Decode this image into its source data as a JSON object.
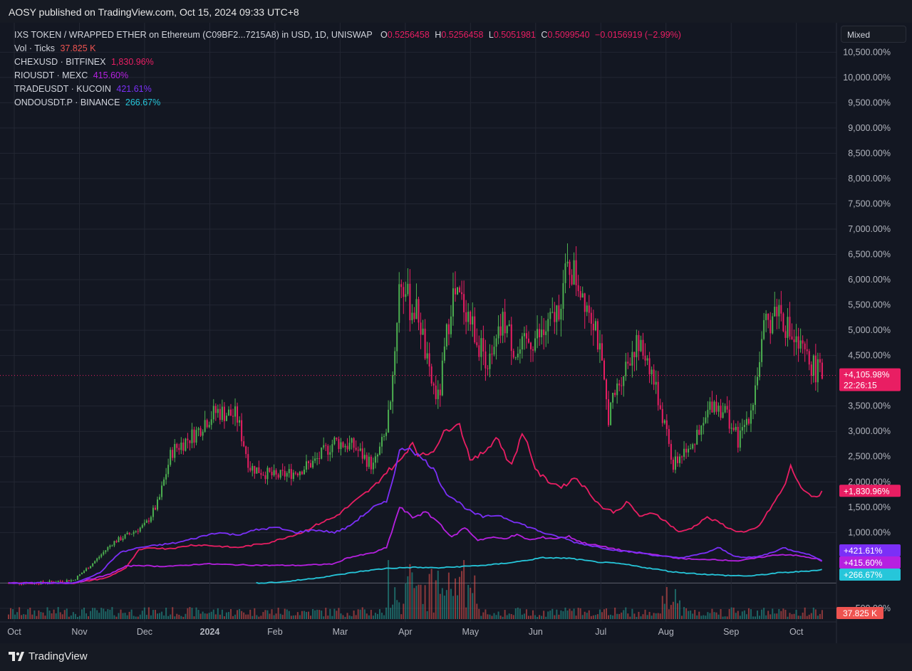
{
  "header": {
    "published": "AOSY published on TradingView.com, Oct 15, 2024 09:33 UTC+8"
  },
  "footer": {
    "brand": "TradingView"
  },
  "scale_mode": "Mixed",
  "main_symbol": {
    "title": "IXS TOKEN / WRAPPED ETHER on Ethereum (C09BF2...7215A8) in USD, 1D, UNISWAP",
    "o_label": "O",
    "o": "0.5256458",
    "h_label": "H",
    "h": "0.5256458",
    "l_label": "L",
    "l": "0.5051981",
    "c_label": "C",
    "c": "0.5099540",
    "change": "−0.0156919 (−2.99%)"
  },
  "volume": {
    "label": "Vol · Ticks",
    "value": "37.825 K"
  },
  "compare": [
    {
      "name": "CHEXUSD · BITFINEX",
      "value": "1,830.96%",
      "color": "#e91e63"
    },
    {
      "name": "RIOUSDT · MEXC",
      "value": "415.60%",
      "color": "#b620e0"
    },
    {
      "name": "TRADEUSDT · KUCOIN",
      "value": "421.61%",
      "color": "#7b2ff7"
    },
    {
      "name": "ONDOUSDT.P · BINANCE",
      "value": "266.67%",
      "color": "#26c6da"
    }
  ],
  "price_badges": {
    "main": "+4,105.98%",
    "countdown": "22:26:15",
    "chex": "+1,830.96%",
    "trade": "+421.61%",
    "rio": "+415.60%",
    "ondo": "+266.67%",
    "vol": "37.825 K"
  },
  "colors": {
    "up": "#4caf50",
    "down": "#e91e63",
    "chex": "#e91e63",
    "rio": "#b620e0",
    "trade": "#7b2ff7",
    "ondo": "#26c6da"
  },
  "chart_data": {
    "type": "line",
    "y_unit": "%",
    "y_ticks": [
      "10,500.00%",
      "10,000.00%",
      "9,500.00%",
      "9,000.00%",
      "8,500.00%",
      "8,000.00%",
      "7,500.00%",
      "7,000.00%",
      "6,500.00%",
      "6,000.00%",
      "5,500.00%",
      "5,000.00%",
      "4,500.00%",
      "3,500.00%",
      "3,000.00%",
      "2,500.00%",
      "2,000.00%",
      "1,500.00%",
      "1,000.00%",
      "-500.00%"
    ],
    "y_tick_values": [
      10500,
      10000,
      9500,
      9000,
      8500,
      8000,
      7500,
      7000,
      6500,
      6000,
      5500,
      5000,
      4500,
      3500,
      3000,
      2500,
      2000,
      1500,
      1000,
      -500
    ],
    "x_ticks": [
      "Oct",
      "Nov",
      "Dec",
      "2024",
      "Feb",
      "Mar",
      "Apr",
      "May",
      "Jun",
      "Jul",
      "Aug",
      "Sep",
      "Oct"
    ],
    "x_tick_months": [
      0,
      1,
      2,
      3,
      4,
      5,
      6,
      7,
      8,
      9,
      10,
      11,
      12
    ],
    "ylim": [
      -600,
      10800
    ],
    "xlim": [
      0,
      12.55
    ],
    "series": [
      {
        "name": "IXS TOKEN / WRAPPED ETHER",
        "key": "main",
        "x": [
          0,
          0.5,
          1,
          1.3,
          1.6,
          1.9,
          2.1,
          2.3,
          2.5,
          2.7,
          2.9,
          3.0,
          3.2,
          3.5,
          3.7,
          3.9,
          4.1,
          4.4,
          4.7,
          5.0,
          5.3,
          5.6,
          5.8,
          5.9,
          6.0,
          6.05,
          6.15,
          6.3,
          6.45,
          6.6,
          6.8,
          7.0,
          7.2,
          7.4,
          7.6,
          7.8,
          8.0,
          8.2,
          8.4,
          8.6,
          8.8,
          9.0,
          9.2,
          9.4,
          9.6,
          9.8,
          10.0,
          10.2,
          10.4,
          10.6,
          10.8,
          11.0,
          11.2,
          11.4,
          11.6,
          11.8,
          12.0,
          12.2,
          12.4,
          12.5
        ],
        "values": [
          0,
          5,
          60,
          400,
          800,
          1000,
          1150,
          1600,
          2600,
          2800,
          3000,
          3200,
          3400,
          3300,
          2300,
          2200,
          2100,
          2200,
          2400,
          2800,
          2700,
          2300,
          3000,
          4200,
          6000,
          5900,
          5500,
          5300,
          4100,
          3600,
          5700,
          5500,
          4800,
          4300,
          5200,
          4500,
          4800,
          4900,
          5300,
          6300,
          5800,
          5200,
          3300,
          4100,
          4700,
          4500,
          3500,
          2300,
          2700,
          2900,
          3600,
          3400,
          2800,
          3500,
          5000,
          5500,
          4900,
          4500,
          4200,
          4106
        ]
      },
      {
        "name": "CHEXUSD · BITFINEX",
        "key": "chex",
        "x": [
          0,
          1.0,
          1.5,
          1.8,
          2.0,
          2.2,
          2.4,
          2.6,
          2.8,
          3.0,
          3.5,
          4.0,
          4.5,
          4.8,
          5.0,
          5.2,
          5.4,
          5.6,
          5.8,
          6.0,
          6.2,
          6.3,
          6.5,
          6.7,
          6.9,
          7.1,
          7.3,
          7.5,
          7.7,
          7.9,
          8.1,
          8.3,
          8.5,
          8.7,
          8.9,
          9.1,
          9.3,
          9.5,
          9.7,
          9.9,
          10.1,
          10.3,
          10.5,
          10.7,
          10.9,
          11.1,
          11.3,
          11.5,
          11.7,
          11.9,
          12.0,
          12.2,
          12.4,
          12.5
        ],
        "values": [
          0,
          0,
          100,
          300,
          650,
          700,
          680,
          700,
          750,
          750,
          700,
          800,
          1000,
          1200,
          1300,
          1500,
          1700,
          1900,
          2200,
          2400,
          2800,
          2500,
          2600,
          3000,
          3200,
          2400,
          2600,
          2900,
          2300,
          3000,
          2200,
          2000,
          1900,
          2100,
          1800,
          1500,
          1400,
          1600,
          1300,
          1400,
          1200,
          1000,
          1100,
          1300,
          1200,
          1050,
          1000,
          1100,
          1500,
          1900,
          2300,
          1800,
          1700,
          1831
        ]
      },
      {
        "name": "RIOUSDT · MEXC",
        "key": "rio",
        "x": [
          0,
          1.0,
          1.5,
          1.8,
          2.0,
          2.3,
          2.6,
          3.0,
          3.5,
          4.0,
          4.5,
          5.0,
          5.2,
          5.4,
          5.6,
          5.8,
          6.0,
          6.2,
          6.4,
          6.6,
          6.8,
          7.0,
          7.2,
          7.4,
          7.6,
          7.8,
          8.0,
          8.2,
          8.4,
          8.6,
          8.8,
          9.0,
          9.2,
          9.4,
          9.6,
          9.8,
          10.0,
          10.2,
          10.4,
          10.6,
          10.8,
          11.0,
          11.2,
          11.4,
          11.6,
          11.8,
          12.0,
          12.2,
          12.4,
          12.5
        ],
        "values": [
          0,
          0,
          150,
          330,
          350,
          330,
          340,
          380,
          360,
          350,
          350,
          380,
          500,
          550,
          600,
          700,
          1500,
          1300,
          1400,
          1200,
          900,
          1100,
          850,
          900,
          880,
          950,
          850,
          900,
          880,
          920,
          800,
          750,
          700,
          650,
          600,
          580,
          550,
          500,
          480,
          460,
          470,
          450,
          440,
          480,
          520,
          560,
          560,
          520,
          480,
          416
        ]
      },
      {
        "name": "TRADEUSDT · KUCOIN",
        "key": "trade",
        "x": [
          0,
          1.0,
          1.4,
          1.7,
          2.0,
          2.3,
          2.6,
          2.9,
          3.2,
          3.5,
          3.8,
          4.1,
          4.4,
          4.7,
          5.0,
          5.2,
          5.4,
          5.6,
          5.8,
          6.0,
          6.15,
          6.3,
          6.5,
          6.7,
          6.9,
          7.1,
          7.3,
          7.5,
          7.7,
          7.9,
          8.1,
          8.3,
          8.5,
          8.7,
          8.9,
          9.1,
          9.3,
          9.5,
          9.7,
          9.9,
          10.1,
          10.3,
          10.5,
          10.7,
          10.9,
          11.1,
          11.3,
          11.5,
          11.7,
          11.9,
          12.0,
          12.2,
          12.4,
          12.5
        ],
        "values": [
          0,
          0,
          200,
          600,
          700,
          750,
          800,
          900,
          1000,
          950,
          1050,
          1100,
          1000,
          1050,
          1000,
          1100,
          1300,
          1500,
          1600,
          2600,
          2700,
          2500,
          2300,
          1800,
          1600,
          1400,
          1300,
          1350,
          1250,
          1150,
          1050,
          950,
          900,
          800,
          750,
          700,
          650,
          620,
          600,
          550,
          520,
          500,
          540,
          600,
          700,
          550,
          500,
          520,
          600,
          700,
          650,
          600,
          500,
          422
        ]
      },
      {
        "name": "ONDOUSDT.P · BINANCE",
        "key": "ondo",
        "x": [
          3.8,
          4.2,
          4.6,
          5.0,
          5.4,
          5.8,
          6.2,
          6.6,
          7.0,
          7.4,
          7.8,
          8.2,
          8.6,
          9.0,
          9.4,
          9.8,
          10.2,
          10.6,
          11.0,
          11.4,
          11.8,
          12.2,
          12.5
        ],
        "values": [
          0,
          20,
          80,
          150,
          230,
          290,
          310,
          300,
          330,
          360,
          420,
          500,
          490,
          420,
          380,
          300,
          220,
          180,
          150,
          140,
          200,
          230,
          267
        ]
      }
    ],
    "volume_ylim": [
      0,
      1.0
    ]
  }
}
